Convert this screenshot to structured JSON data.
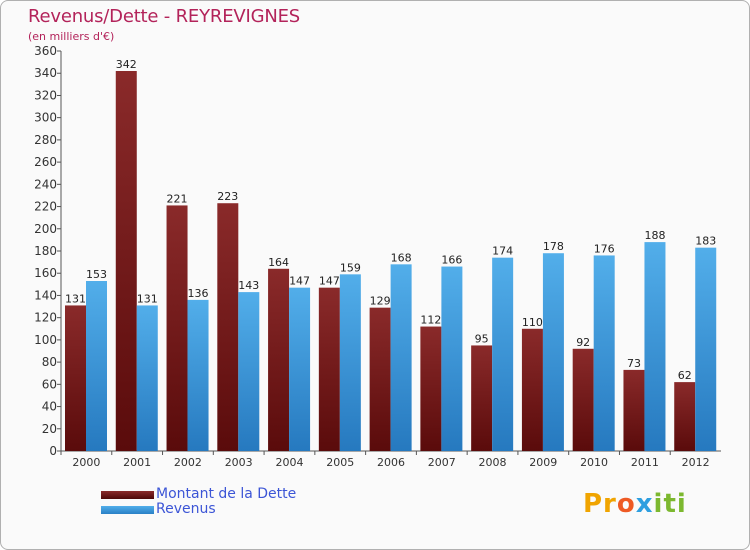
{
  "chart_data": {
    "type": "bar",
    "title": "Revenus/Dette - REYREVIGNES",
    "subtitle": "(en milliers d'€)",
    "categories": [
      "2000",
      "2001",
      "2002",
      "2003",
      "2004",
      "2005",
      "2006",
      "2007",
      "2008",
      "2009",
      "2010",
      "2011",
      "2012"
    ],
    "series": [
      {
        "name": "Montant de la Dette",
        "color": "#7a1c1c",
        "values": [
          131,
          342,
          221,
          223,
          164,
          147,
          129,
          112,
          95,
          110,
          92,
          73,
          62
        ]
      },
      {
        "name": "Revenus",
        "color": "#3d9ee0",
        "values": [
          153,
          131,
          136,
          143,
          147,
          159,
          168,
          166,
          174,
          178,
          176,
          188,
          183
        ]
      }
    ],
    "ylim": [
      0,
      360
    ],
    "ytick_step": 20,
    "grid": false,
    "legend": "bottom-left"
  },
  "brand": {
    "letters": [
      "Pr",
      "o",
      "x",
      "iti"
    ]
  }
}
